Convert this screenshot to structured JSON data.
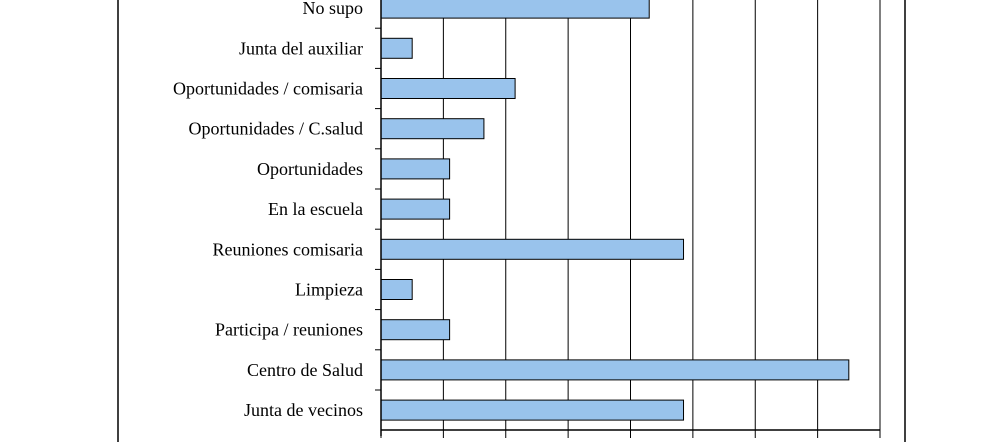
{
  "chart_data": {
    "type": "bar",
    "orientation": "horizontal",
    "categories": [
      "No supo",
      "Junta del auxiliar",
      "Oportunidades / comisaria",
      "Oportunidades / C.salud",
      "Oportunidades",
      "En la escuela",
      "Reuniones comisaria",
      "Limpieza",
      "Participa / reuniones",
      "Centro de Salud",
      "Junta de vecinos"
    ],
    "values": [
      8.6,
      1.0,
      4.3,
      3.3,
      2.2,
      2.2,
      9.7,
      1.0,
      2.2,
      15.0,
      9.7
    ],
    "xlim": [
      0,
      16
    ],
    "grid": true,
    "bar_color": "#99c3ec",
    "bar_edge_color": "#000000"
  }
}
